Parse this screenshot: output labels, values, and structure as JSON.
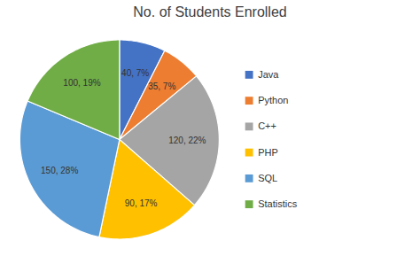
{
  "chart_data": {
    "type": "pie",
    "title": "No. of Students Enrolled",
    "categories": [
      "Java",
      "Python",
      "C++",
      "PHP",
      "SQL",
      "Statistics"
    ],
    "values": [
      40,
      35,
      120,
      90,
      150,
      100
    ],
    "value_labels": [
      "40, 7%",
      "35, 7%",
      "120, 22%",
      "90, 17%",
      "150, 28%",
      "100, 19%"
    ],
    "colors": [
      "#4472C4",
      "#ED7D31",
      "#A5A5A5",
      "#FFC000",
      "#5B9BD5",
      "#70AD47"
    ],
    "data_labels": true,
    "legend": "right"
  }
}
